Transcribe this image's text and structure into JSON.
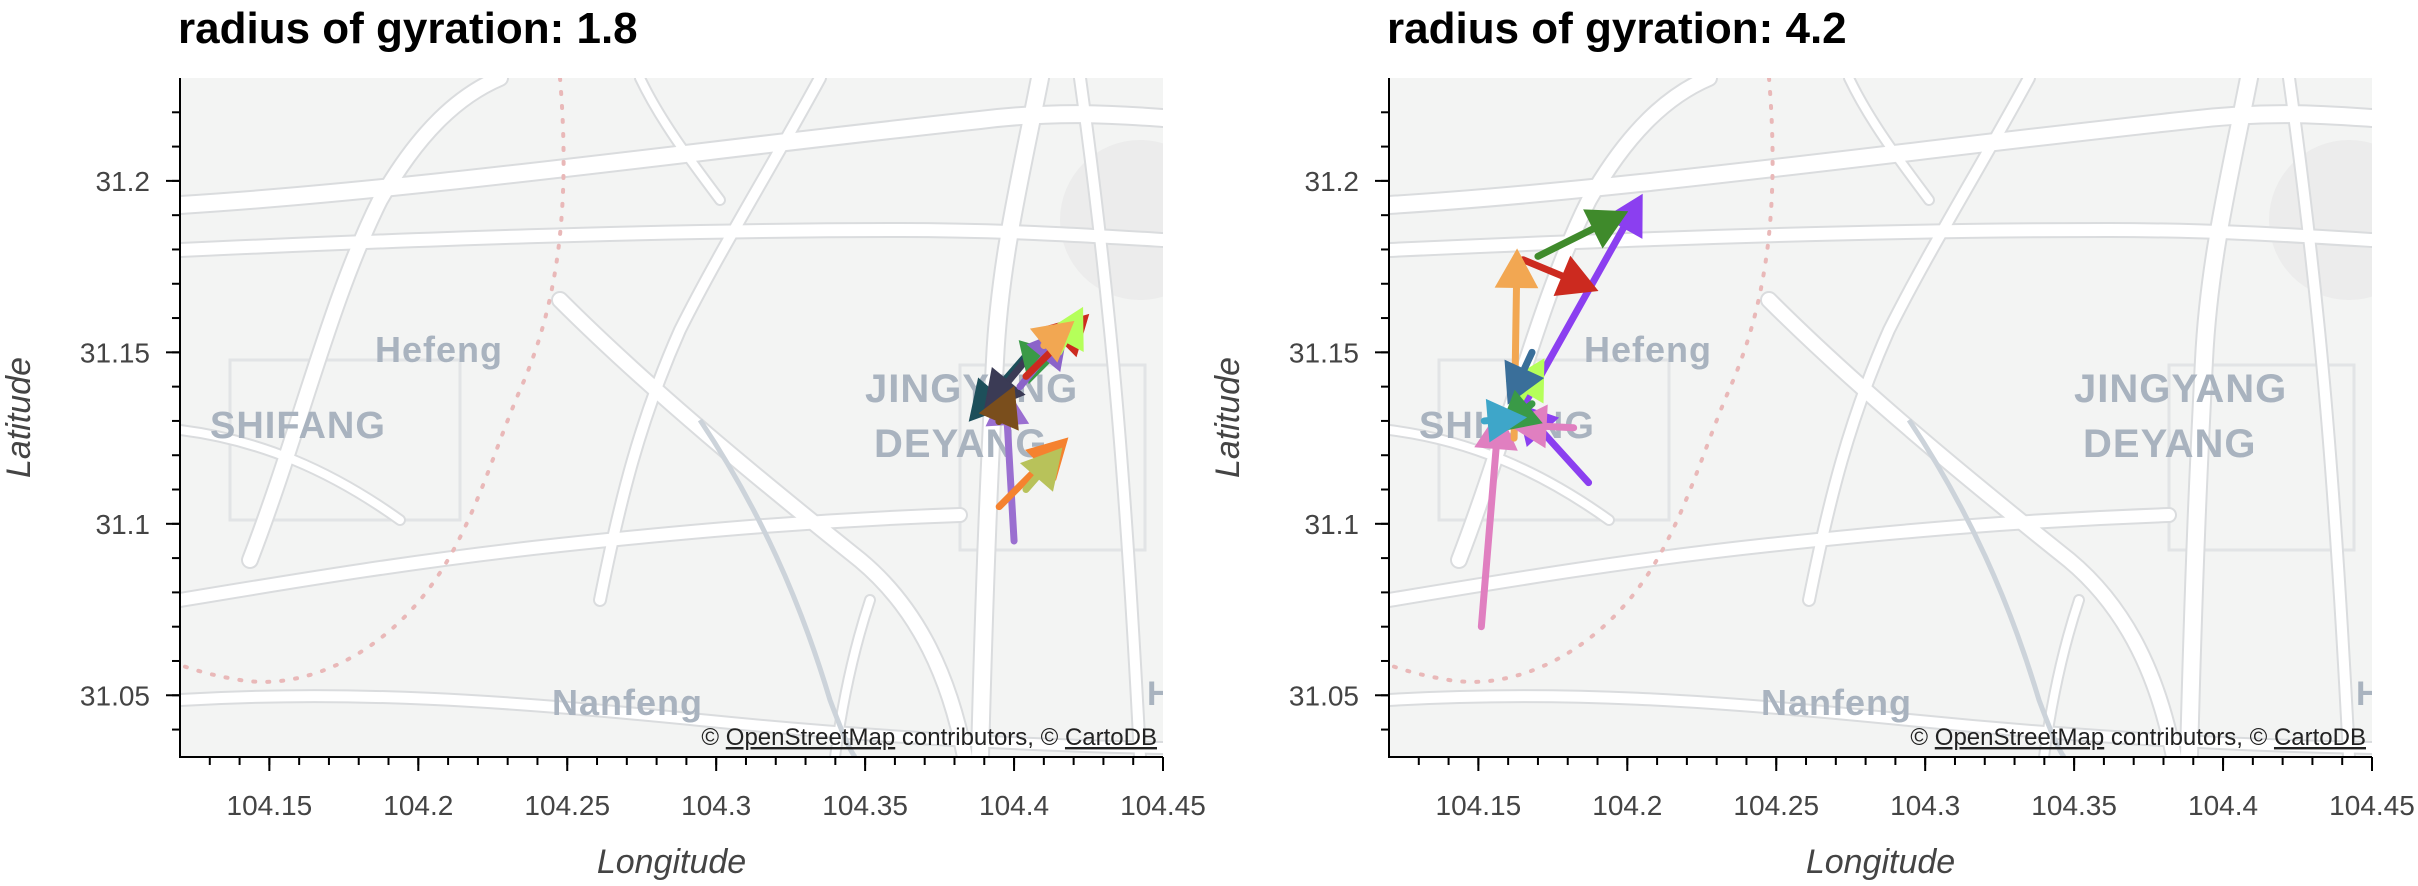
{
  "panels": [
    {
      "title": "radius of gyration: 1.8",
      "xlabel": "Longitude",
      "ylabel": "Latitude",
      "xlim": [
        104.12,
        104.45
      ],
      "ylim": [
        31.032,
        31.23
      ],
      "xticks": [
        104.15,
        104.2,
        104.25,
        104.3,
        104.35,
        104.4,
        104.45
      ],
      "xtick_labels": [
        "104.15",
        "104.2",
        "104.25",
        "104.3",
        "104.35",
        "104.4",
        "104.45"
      ],
      "yticks": [
        31.05,
        31.1,
        31.15,
        31.2
      ],
      "ytick_labels": [
        "31.05",
        "31.1",
        "31.15",
        "31.2"
      ],
      "attribution": {
        "prefix": "© ",
        "osm": "OpenStreetMap",
        "middle": " contributors, © ",
        "carto": "CartoDB"
      },
      "places": [
        "SHIFANG",
        "Hefeng",
        "JINGYANG",
        "DEYANG",
        "Nanfeng",
        "H"
      ]
    },
    {
      "title": "radius of gyration: 4.2",
      "xlabel": "Longitude",
      "ylabel": "Latitude",
      "xlim": [
        104.12,
        104.45
      ],
      "ylim": [
        31.032,
        31.23
      ],
      "xticks": [
        104.15,
        104.2,
        104.25,
        104.3,
        104.35,
        104.4,
        104.45
      ],
      "xtick_labels": [
        "104.15",
        "104.2",
        "104.25",
        "104.3",
        "104.35",
        "104.4",
        "104.45"
      ],
      "yticks": [
        31.05,
        31.1,
        31.15,
        31.2
      ],
      "ytick_labels": [
        "31.05",
        "31.1",
        "31.15",
        "31.2"
      ],
      "attribution": {
        "prefix": "© ",
        "osm": "OpenStreetMap",
        "middle": " contributors, © ",
        "carto": "CartoDB"
      },
      "places": [
        "SHIFANG",
        "Hefeng",
        "JINGYANG",
        "DEYANG",
        "Nanfeng",
        "H"
      ]
    }
  ],
  "chart_data": [
    {
      "type": "scatter",
      "title": "radius of gyration: 1.8",
      "xlabel": "Longitude",
      "ylabel": "Latitude",
      "xlim": [
        104.12,
        104.45
      ],
      "ylim": [
        31.032,
        31.23
      ],
      "basemap": "CartoDB Positron",
      "trips": [
        {
          "from": [
            104.4,
            31.095
          ],
          "to": [
            104.397,
            31.14
          ],
          "color": "#9a6fd0"
        },
        {
          "from": [
            104.395,
            31.105
          ],
          "to": [
            104.418,
            31.125
          ],
          "color": "#f5822f"
        },
        {
          "from": [
            104.404,
            31.11
          ],
          "to": [
            104.416,
            31.122
          ],
          "color": "#b8c25a"
        },
        {
          "from": [
            104.405,
            31.15
          ],
          "to": [
            104.385,
            31.13
          ],
          "color": "#1d4f5a"
        },
        {
          "from": [
            104.408,
            31.152
          ],
          "to": [
            104.39,
            31.133
          ],
          "color": "#3b3b55"
        },
        {
          "from": [
            104.395,
            31.13
          ],
          "to": [
            104.4,
            31.14
          ],
          "color": "#7a4e1c"
        },
        {
          "from": [
            104.408,
            31.15
          ],
          "to": [
            104.405,
            31.141
          ],
          "color": "#3a9a47"
        },
        {
          "from": [
            104.402,
            31.14
          ],
          "to": [
            104.418,
            31.157
          ],
          "color": "#8b63c9"
        },
        {
          "from": [
            104.404,
            31.143
          ],
          "to": [
            104.425,
            31.161
          ],
          "color": "#cc2a1f"
        },
        {
          "from": [
            104.415,
            31.15
          ],
          "to": [
            104.423,
            31.163
          ],
          "color": "#b5ff5a"
        },
        {
          "from": [
            104.41,
            31.152
          ],
          "to": [
            104.42,
            31.159
          ],
          "color": "#f2a752"
        }
      ]
    },
    {
      "type": "scatter",
      "title": "radius of gyration: 4.2",
      "xlabel": "Longitude",
      "ylabel": "Latitude",
      "xlim": [
        104.12,
        104.45
      ],
      "ylim": [
        31.032,
        31.23
      ],
      "basemap": "CartoDB Positron",
      "trips": [
        {
          "from": [
            104.151,
            31.07
          ],
          "to": [
            104.157,
            31.133
          ],
          "color": "#e07fc0"
        },
        {
          "from": [
            104.187,
            31.112
          ],
          "to": [
            104.163,
            31.135
          ],
          "color": "#8b3ff0"
        },
        {
          "from": [
            104.163,
            31.131
          ],
          "to": [
            104.205,
            31.196
          ],
          "color": "#8b3ff0"
        },
        {
          "from": [
            104.165,
            31.177
          ],
          "to": [
            104.19,
            31.168
          ],
          "color": "#cc2a1f"
        },
        {
          "from": [
            104.17,
            31.178
          ],
          "to": [
            104.2,
            31.191
          ],
          "color": "#3f8a2b"
        },
        {
          "from": [
            104.162,
            31.125
          ],
          "to": [
            104.163,
            31.18
          ],
          "color": "#f2a752"
        },
        {
          "from": [
            104.182,
            31.128
          ],
          "to": [
            104.16,
            31.129
          ],
          "color": "#e07fc0"
        },
        {
          "from": [
            104.16,
            31.13
          ],
          "to": [
            104.172,
            31.148
          ],
          "color": "#b5ff5a"
        },
        {
          "from": [
            104.168,
            31.15
          ],
          "to": [
            104.16,
            31.135
          ],
          "color": "#3a6f9a"
        },
        {
          "from": [
            104.168,
            31.135
          ],
          "to": [
            104.157,
            31.127
          ],
          "color": "#3a9a47"
        },
        {
          "from": [
            104.152,
            31.13
          ],
          "to": [
            104.166,
            31.131
          ],
          "color": "#3ea6c9"
        }
      ]
    }
  ],
  "colors": {
    "map_bg": "#f3f4f3",
    "road": "#ffffff",
    "road_edge": "#dadcde",
    "boundary": "#e9b8b8",
    "water": "#ccd3da"
  }
}
